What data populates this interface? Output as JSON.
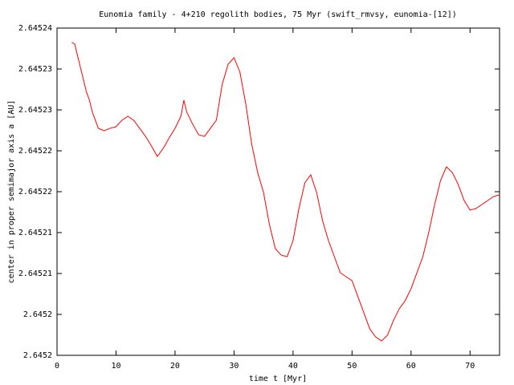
{
  "chart_data": {
    "type": "line",
    "title": "Eunomia family - 4+210 regolith bodies, 75 Myr (swift_rmvsy, eunomia-[12])",
    "x_label": "time t [Myr]",
    "y_label": "center in proper semimajor axis a [AU]",
    "xlim": [
      0,
      75
    ],
    "xticks": [
      0,
      10,
      20,
      30,
      40,
      50,
      60,
      70
    ],
    "ylim": [
      2.6452,
      2.64524
    ],
    "yticks": [
      {
        "value": 2.6452,
        "label": "2.6452"
      },
      {
        "value": 2.645205,
        "label": "2.6452"
      },
      {
        "value": 2.64521,
        "label": "2.64521"
      },
      {
        "value": 2.645215,
        "label": "2.64521"
      },
      {
        "value": 2.64522,
        "label": "2.64522"
      },
      {
        "value": 2.645225,
        "label": "2.64522"
      },
      {
        "value": 2.64523,
        "label": "2.64523"
      },
      {
        "value": 2.645235,
        "label": "2.64523"
      },
      {
        "value": 2.64524,
        "label": "2.64524"
      }
    ],
    "x": [
      2.5,
      3,
      3.5,
      4,
      4.5,
      5,
      5.5,
      6,
      7,
      8,
      9,
      10,
      11,
      12,
      13,
      14,
      15,
      16,
      17,
      18,
      19,
      20,
      21,
      21.5,
      22,
      23,
      24,
      25,
      26,
      27,
      28,
      29,
      30,
      31,
      32,
      33,
      34,
      35,
      36,
      37,
      38,
      39,
      40,
      41,
      42,
      43,
      44,
      45,
      46,
      47,
      48,
      49,
      50,
      51,
      52,
      53,
      54,
      55,
      56,
      57,
      58,
      59,
      60,
      61,
      62,
      63,
      64,
      65,
      66,
      67,
      68,
      69,
      70,
      71,
      72,
      73,
      74,
      75
    ],
    "series": [
      {
        "color": "#ff0000",
        "values": [
          2.64523824,
          2.64523804,
          2.64523657,
          2.6452351,
          2.64523363,
          2.64523216,
          2.64523118,
          2.64522971,
          2.64522775,
          2.64522745,
          2.64522775,
          2.64522794,
          2.64522873,
          2.64522922,
          2.64522873,
          2.64522775,
          2.64522676,
          2.64522559,
          2.64522431,
          2.64522529,
          2.64522657,
          2.64522775,
          2.64522922,
          2.64523118,
          2.64522971,
          2.64522824,
          2.64522696,
          2.64522676,
          2.64522775,
          2.64522873,
          2.64523314,
          2.64523559,
          2.64523637,
          2.64523461,
          2.64523069,
          2.64522578,
          2.64522235,
          2.6452199,
          2.64521598,
          2.64521304,
          2.64521225,
          2.64521206,
          2.64521402,
          2.64521794,
          2.64522108,
          2.64522206,
          2.6452199,
          2.64521647,
          2.64521402,
          2.64521206,
          2.6452101,
          2.64520961,
          2.64520912,
          2.64520716,
          2.6452052,
          2.64520324,
          2.64520225,
          2.64520176,
          2.64520245,
          2.64520422,
          2.64520569,
          2.64520667,
          2.64520814,
          2.6452101,
          2.64521206,
          2.645215,
          2.64521843,
          2.64522137,
          2.64522304,
          2.64522235,
          2.64522088,
          2.64521892,
          2.64521775,
          2.64521794,
          2.64521843,
          2.64521892,
          2.64521941,
          2.64521961
        ]
      }
    ]
  }
}
